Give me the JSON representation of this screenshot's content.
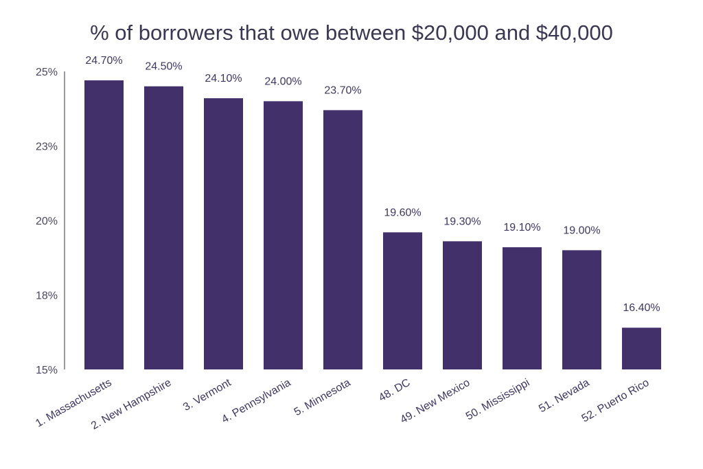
{
  "chart_data": {
    "type": "bar",
    "title": "% of borrowers that owe between $20,000 and $40,000",
    "xlabel": "",
    "ylabel": "",
    "categories": [
      "1. Massachusetts",
      "2. New Hampshire",
      "3. Vermont",
      "4. Pennsylvania",
      "5. Minnesota",
      "48. DC",
      "49. New Mexico",
      "50. Mississippi",
      "51. Nevada",
      "52. Puerto Rico"
    ],
    "values": [
      24.7,
      24.5,
      24.1,
      24.0,
      23.7,
      19.6,
      19.3,
      19.1,
      19.0,
      16.4
    ],
    "value_labels": [
      "24.70%",
      "24.50%",
      "24.10%",
      "24.00%",
      "23.70%",
      "19.60%",
      "19.30%",
      "19.10%",
      "19.00%",
      "16.40%"
    ],
    "ylim": [
      15,
      25
    ],
    "y_ticks": [
      {
        "value": 15,
        "label": "15%"
      },
      {
        "value": 17.5,
        "label": "18%"
      },
      {
        "value": 20,
        "label": "20%"
      },
      {
        "value": 22.5,
        "label": "23%"
      },
      {
        "value": 25,
        "label": "25%"
      }
    ],
    "grid": false,
    "colors": {
      "bar": "#42306b",
      "axis": "#333333"
    }
  }
}
